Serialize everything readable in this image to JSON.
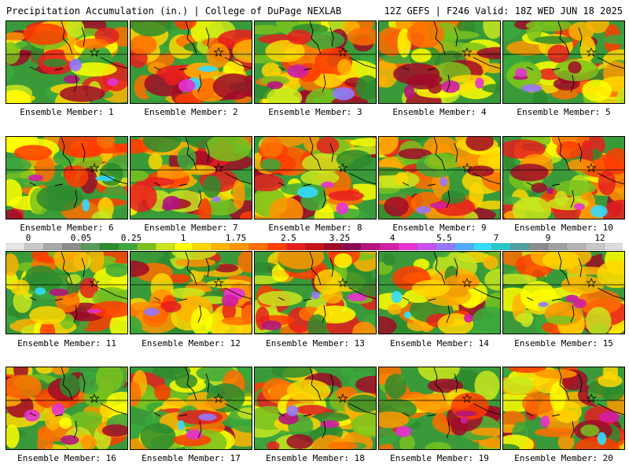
{
  "header": {
    "title": "Precipitation Accumulation (in.) | College of DuPage NEXLAB",
    "run_info": "12Z GEFS | F246 Valid: 18Z WED JUN 18 2025"
  },
  "panels": [
    "Ensemble Member: 1",
    "Ensemble Member: 2",
    "Ensemble Member: 3",
    "Ensemble Member: 4",
    "Ensemble Member: 5",
    "Ensemble Member: 6",
    "Ensemble Member: 7",
    "Ensemble Member: 8",
    "Ensemble Member: 9",
    "Ensemble Member: 10",
    "Ensemble Member: 11",
    "Ensemble Member: 12",
    "Ensemble Member: 13",
    "Ensemble Member: 14",
    "Ensemble Member: 15",
    "Ensemble Member: 16",
    "Ensemble Member: 17",
    "Ensemble Member: 18",
    "Ensemble Member: 19",
    "Ensemble Member: 20"
  ],
  "legend": {
    "tick_labels": [
      "0",
      "0.05",
      "0.25",
      "1",
      "1.75",
      "2.5",
      "3.25",
      "4",
      "5.5",
      "7",
      "9",
      "12"
    ],
    "colors": [
      "#e6e6e6",
      "#c8c8c8",
      "#a8a8a8",
      "#8c8c8c",
      "#5a9a5a",
      "#2e8b2e",
      "#3ca83c",
      "#79c21e",
      "#c8e61e",
      "#ffff00",
      "#ffd700",
      "#ffb400",
      "#ff9600",
      "#ff6e00",
      "#ff3c00",
      "#e61e1e",
      "#c81414",
      "#a00a28",
      "#8c0a50",
      "#b4147d",
      "#d21ea5",
      "#e632d2",
      "#c850f0",
      "#9678ff",
      "#50aaff",
      "#32dcff",
      "#28c8c8",
      "#50a0a0",
      "#8c8c8c",
      "#a0a0a0",
      "#b4b4b4",
      "#c8c8c8",
      "#dcdcdc"
    ]
  }
}
